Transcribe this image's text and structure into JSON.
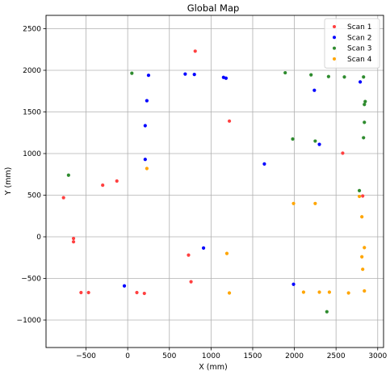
{
  "chart_data": {
    "type": "scatter",
    "title": "Global Map",
    "xlabel": "X (mm)",
    "ylabel": "Y (mm)",
    "xlim": [
      -980,
      3070
    ],
    "ylim": [
      -1330,
      2660
    ],
    "xticks": [
      -500,
      0,
      500,
      1000,
      1500,
      2000,
      2500,
      3000
    ],
    "yticks": [
      -1000,
      -500,
      0,
      500,
      1000,
      1500,
      2000,
      2500
    ],
    "grid": true,
    "legend_position": "top-right",
    "series": [
      {
        "name": "Scan 1",
        "color": "#ff4040",
        "points": [
          [
            810,
            2230
          ],
          [
            1220,
            1390
          ],
          [
            2580,
            1005
          ],
          [
            -770,
            470
          ],
          [
            -300,
            620
          ],
          [
            -130,
            670
          ],
          [
            2820,
            490
          ],
          [
            -650,
            -20
          ],
          [
            -650,
            -60
          ],
          [
            730,
            -220
          ],
          [
            760,
            -540
          ],
          [
            -560,
            -670
          ],
          [
            -470,
            -670
          ],
          [
            110,
            -670
          ],
          [
            200,
            -680
          ]
        ]
      },
      {
        "name": "Scan 2",
        "color": "#0000ff",
        "points": [
          [
            250,
            1940
          ],
          [
            690,
            1955
          ],
          [
            800,
            1950
          ],
          [
            1150,
            1915
          ],
          [
            1180,
            1905
          ],
          [
            2240,
            1760
          ],
          [
            2790,
            1860
          ],
          [
            230,
            1635
          ],
          [
            210,
            1335
          ],
          [
            210,
            930
          ],
          [
            1640,
            875
          ],
          [
            2300,
            1110
          ],
          [
            910,
            -135
          ],
          [
            -40,
            -590
          ],
          [
            1990,
            -570
          ]
        ]
      },
      {
        "name": "Scan 3",
        "color": "#2e8b2e",
        "points": [
          [
            50,
            1965
          ],
          [
            1890,
            1970
          ],
          [
            2200,
            1945
          ],
          [
            2410,
            1925
          ],
          [
            2600,
            1920
          ],
          [
            2830,
            1920
          ],
          [
            2840,
            1590
          ],
          [
            2850,
            1625
          ],
          [
            2840,
            1375
          ],
          [
            2830,
            1190
          ],
          [
            1980,
            1175
          ],
          [
            2250,
            1150
          ],
          [
            -710,
            740
          ],
          [
            2780,
            555
          ],
          [
            2390,
            -900
          ]
        ]
      },
      {
        "name": "Scan 4",
        "color": "#ffa500",
        "points": [
          [
            230,
            820
          ],
          [
            1990,
            400
          ],
          [
            2250,
            400
          ],
          [
            2780,
            485
          ],
          [
            2810,
            240
          ],
          [
            1190,
            -200
          ],
          [
            2840,
            -130
          ],
          [
            2810,
            -240
          ],
          [
            2820,
            -390
          ],
          [
            1220,
            -675
          ],
          [
            2110,
            -665
          ],
          [
            2300,
            -665
          ],
          [
            2420,
            -665
          ],
          [
            2650,
            -675
          ],
          [
            2840,
            -650
          ]
        ]
      }
    ]
  }
}
